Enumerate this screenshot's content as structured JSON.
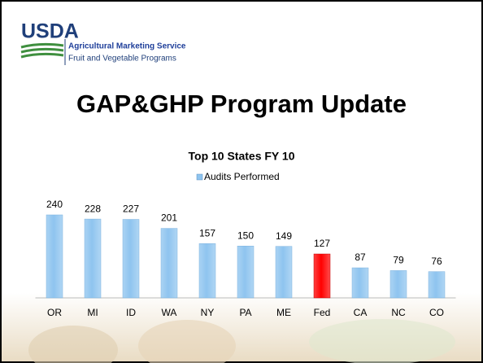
{
  "header": {
    "logo": "USDA",
    "agency": "Agricultural Marketing Service",
    "program": "Fruit and Vegetable Programs"
  },
  "slide_title": "GAP&GHP Program Update",
  "chart_data": {
    "type": "bar",
    "title": "Top 10 States FY 10",
    "categories": [
      "OR",
      "MI",
      "ID",
      "WA",
      "NY",
      "PA",
      "ME",
      "Fed",
      "CA",
      "NC",
      "CO"
    ],
    "series": [
      {
        "name": "Audits Performed",
        "color": "#8ec4ef",
        "values": [
          240,
          228,
          227,
          201,
          157,
          150,
          149,
          127,
          87,
          79,
          76
        ],
        "colors": [
          "#8ec4ef",
          "#8ec4ef",
          "#8ec4ef",
          "#8ec4ef",
          "#8ec4ef",
          "#8ec4ef",
          "#8ec4ef",
          "#ff0000",
          "#8ec4ef",
          "#8ec4ef",
          "#8ec4ef"
        ]
      }
    ],
    "ylim": [
      0,
      280
    ],
    "legend": "top"
  }
}
